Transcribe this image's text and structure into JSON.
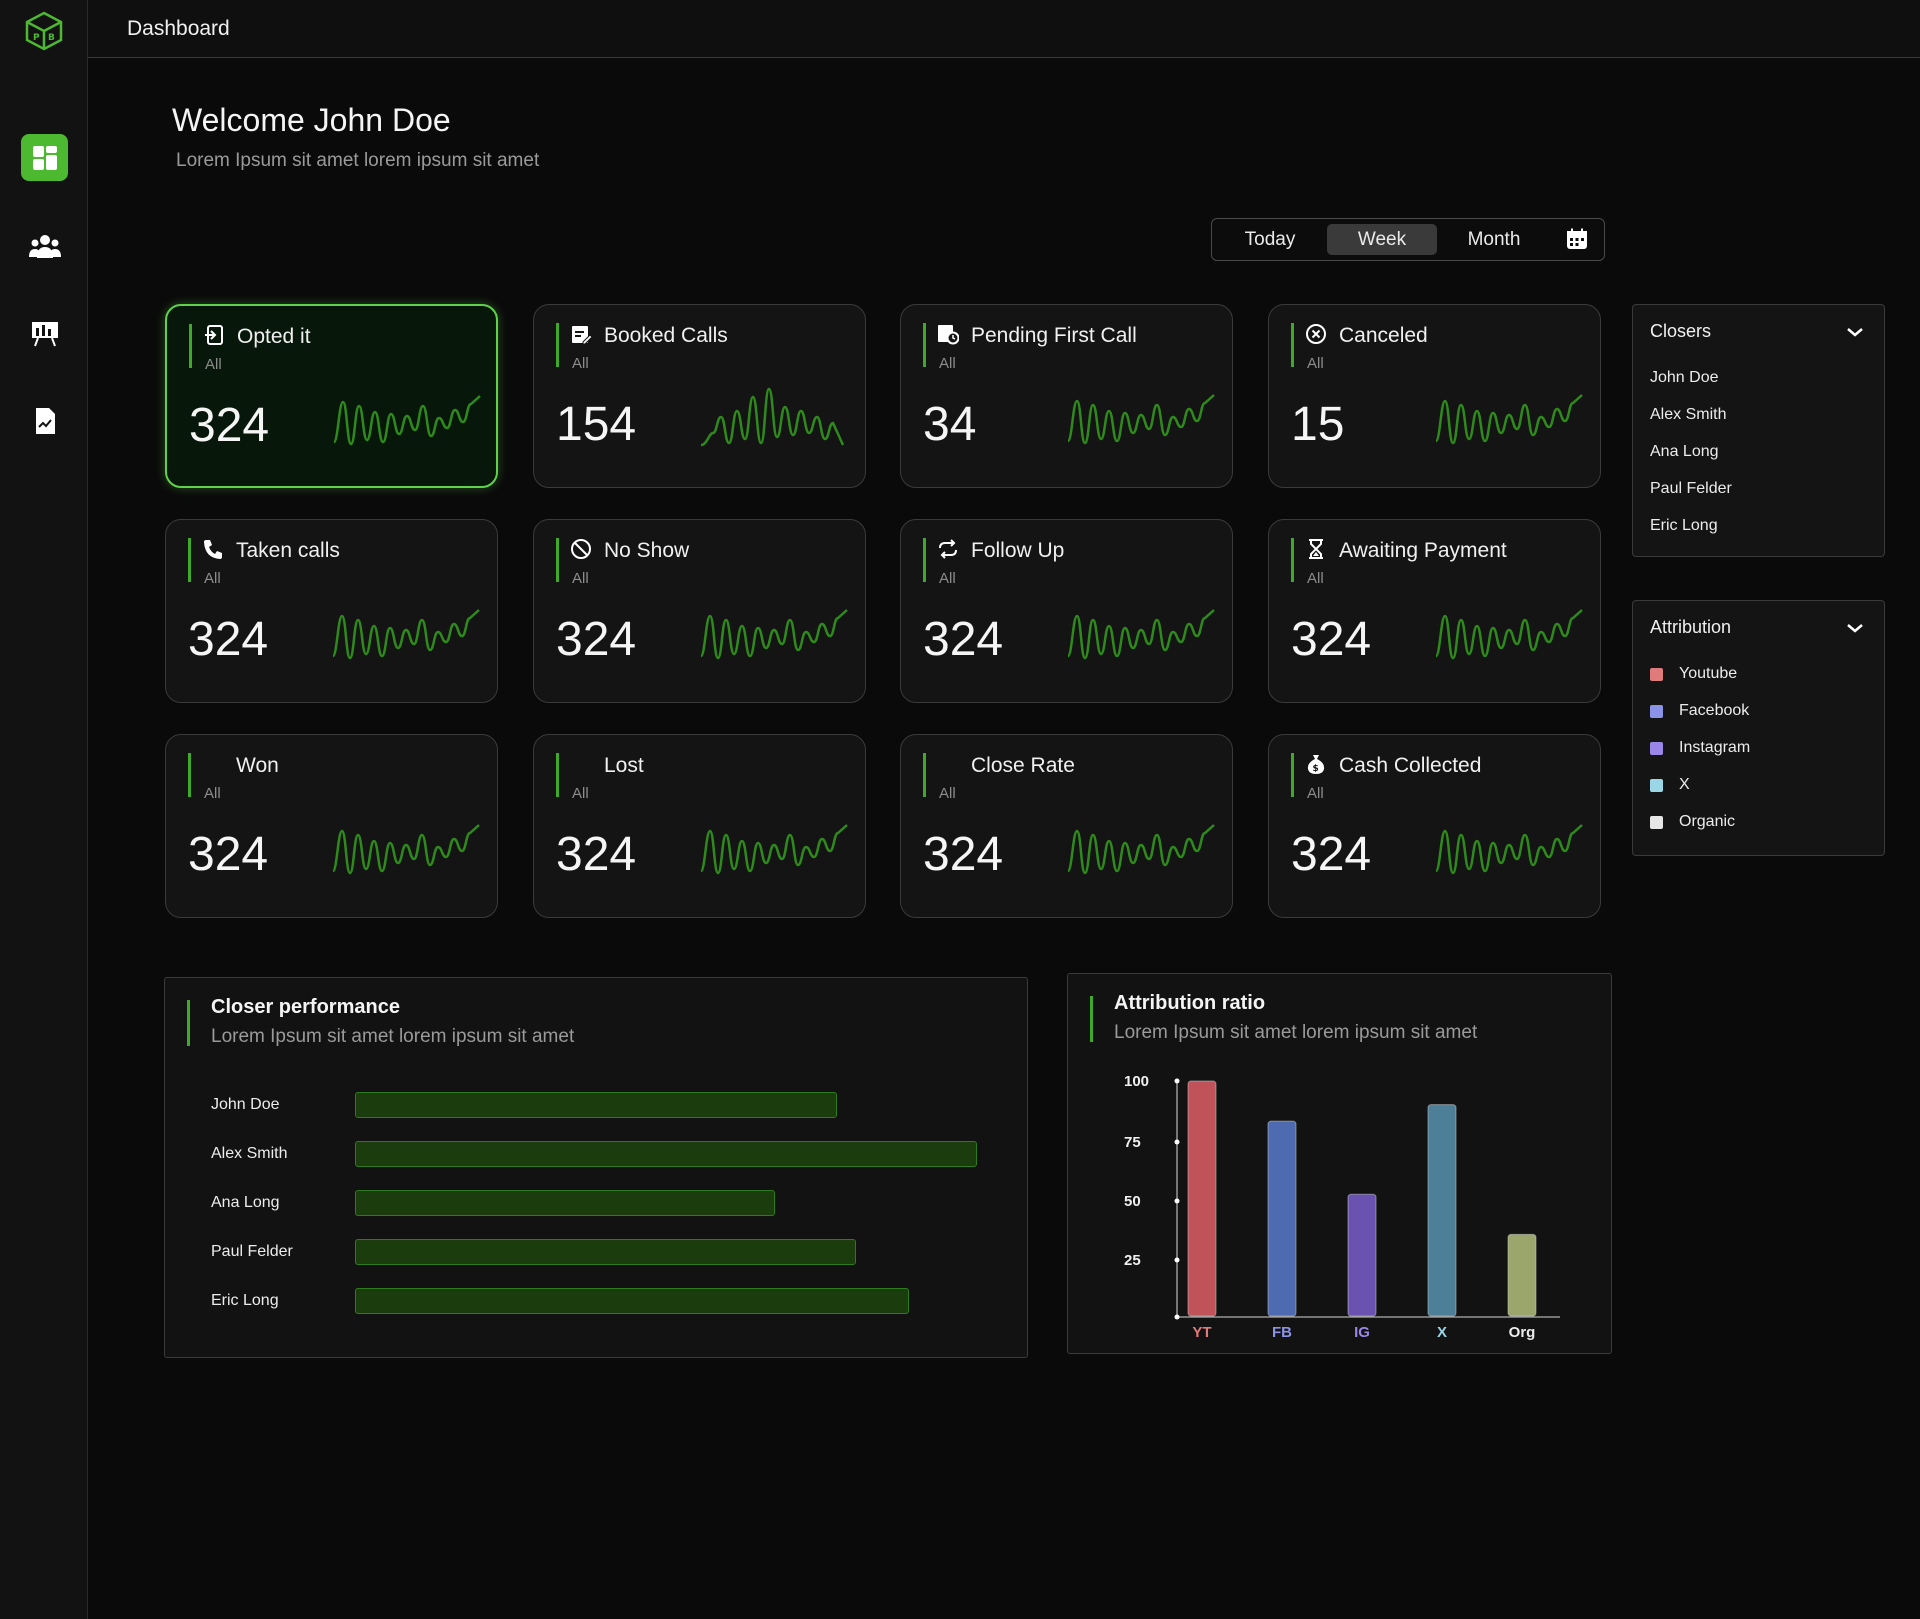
{
  "topbar": {
    "title": "Dashboard"
  },
  "welcome": {
    "title": "Welcome John Doe",
    "subtitle": "Lorem Ipsum sit amet lorem ipsum sit amet"
  },
  "range": {
    "options": [
      "Today",
      "Week",
      "Month"
    ],
    "selected": "Week",
    "calendar_icon": "calendar-icon"
  },
  "sidebar": {
    "items": [
      {
        "icon": "dashboard-icon",
        "active": true
      },
      {
        "icon": "users-icon",
        "active": false
      },
      {
        "icon": "presentation-icon",
        "active": false
      },
      {
        "icon": "document-icon",
        "active": false
      }
    ]
  },
  "cards": [
    {
      "label": "Opted it",
      "sub": "All",
      "value": "324",
      "icon": "sign-in-icon",
      "active": true
    },
    {
      "label": "Booked Calls",
      "sub": "All",
      "value": "154",
      "icon": "calendar-edit-icon"
    },
    {
      "label": "Pending First Call",
      "sub": "All",
      "value": "34",
      "icon": "calendar-clock-icon"
    },
    {
      "label": "Canceled",
      "sub": "All",
      "value": "15",
      "icon": "circle-x-icon"
    },
    {
      "label": "Taken calls",
      "sub": "All",
      "value": "324",
      "icon": "phone-icon"
    },
    {
      "label": "No Show",
      "sub": "All",
      "value": "324",
      "icon": "ban-icon"
    },
    {
      "label": "Follow Up",
      "sub": "All",
      "value": "324",
      "icon": "repeat-icon"
    },
    {
      "label": "Awaiting Payment",
      "sub": "All",
      "value": "324",
      "icon": "hourglass-icon"
    },
    {
      "label": "Won",
      "sub": "All",
      "value": "324",
      "icon": ""
    },
    {
      "label": "Lost",
      "sub": "All",
      "value": "324",
      "icon": ""
    },
    {
      "label": "Close Rate",
      "sub": "All",
      "value": "324",
      "icon": ""
    },
    {
      "label": "Cash Collected",
      "sub": "All",
      "value": "324",
      "icon": "money-bag-icon"
    }
  ],
  "closers": {
    "title": "Closers",
    "items": [
      "John Doe",
      "Alex Smith",
      "Ana Long",
      "Paul Felder",
      "Eric Long"
    ]
  },
  "attribution": {
    "title": "Attribution",
    "items": [
      {
        "label": "Youtube",
        "color": "#e07b7b"
      },
      {
        "label": "Facebook",
        "color": "#8a93e6"
      },
      {
        "label": "Instagram",
        "color": "#9a86e6"
      },
      {
        "label": "X",
        "color": "#9ad6e6"
      },
      {
        "label": "Organic",
        "color": "#e6e6e6"
      }
    ]
  },
  "closer_performance": {
    "title": "Closer performance",
    "subtitle": "Lorem Ipsum sit amet lorem ipsum sit amet",
    "rows": [
      {
        "name": "John Doe",
        "value": 0.775
      },
      {
        "name": "Alex Smith",
        "value": 1.0
      },
      {
        "name": "Ana Long",
        "value": 0.675
      },
      {
        "name": "Paul Felder",
        "value": 0.805
      },
      {
        "name": "Eric Long",
        "value": 0.89
      }
    ]
  },
  "attribution_ratio": {
    "title": "Attribution ratio",
    "subtitle": "Lorem Ipsum sit amet lorem ipsum sit amet"
  },
  "chart_data": {
    "type": "bar",
    "categories": [
      "YT",
      "FB",
      "IG",
      "X",
      "Org"
    ],
    "values": [
      100,
      83,
      52,
      90,
      35
    ],
    "colors": [
      "#c0525a",
      "#4e6ab0",
      "#6a52b0",
      "#4e7f98",
      "#9ba66c"
    ],
    "label_colors": [
      "#e07b7b",
      "#8a93e6",
      "#9a86e6",
      "#9ad6e6",
      "#ececec"
    ],
    "yticks": [
      100,
      75,
      50,
      25
    ],
    "ylim": [
      0,
      100
    ],
    "title": "",
    "xlabel": "",
    "ylabel": ""
  }
}
